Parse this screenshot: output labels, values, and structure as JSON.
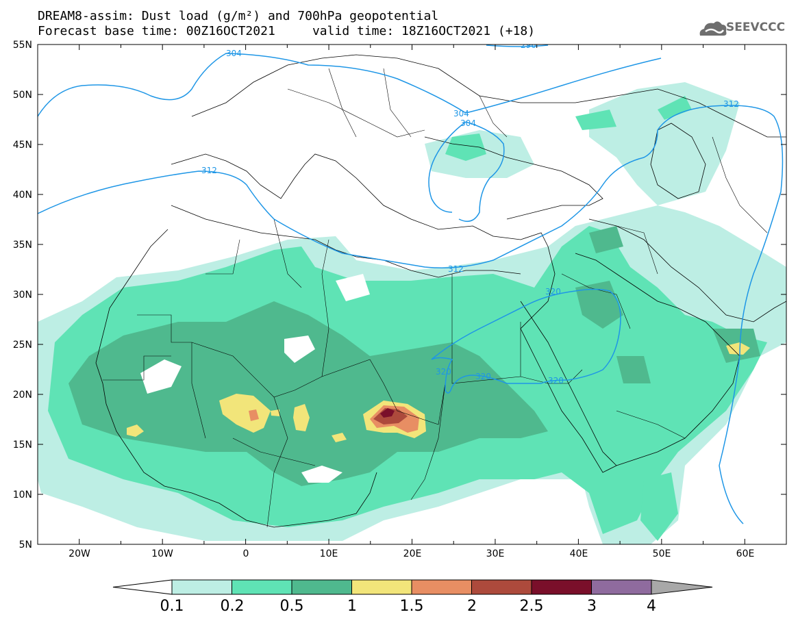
{
  "title_line1": "DREAM8-assim: Dust load (g/m²) and 700hPa geopotential",
  "title_line2": "Forecast base time: 00Z16OCT2021     valid time: 18Z16OCT2021 (+18)",
  "logo_text": "SEEVCCC",
  "map": {
    "lon_range": [
      -25,
      65
    ],
    "lat_range": [
      5,
      55
    ],
    "lat_labels": [
      "55N",
      "50N",
      "45N",
      "40N",
      "35N",
      "30N",
      "25N",
      "20N",
      "15N",
      "10N",
      "5N"
    ],
    "lon_labels": [
      "20W",
      "10W",
      "0",
      "10E",
      "20E",
      "30E",
      "40E",
      "50E",
      "60E"
    ],
    "contour_color": "#1e96e6",
    "contour_labels": [
      "304",
      "296",
      "304",
      "304",
      "312",
      "312",
      "312",
      "320",
      "320",
      "320",
      "320"
    ]
  },
  "colorbar": {
    "labels": [
      "0.1",
      "0.2",
      "0.5",
      "1",
      "1.5",
      "2",
      "2.5",
      "3",
      "4"
    ],
    "colors": [
      "#ffffff",
      "#bdeee4",
      "#5fe3b5",
      "#4fb98e",
      "#f2e57a",
      "#e88e63",
      "#ad4a3c",
      "#7a0f2a",
      "#8f6b9e",
      "#a8a8a8"
    ]
  }
}
